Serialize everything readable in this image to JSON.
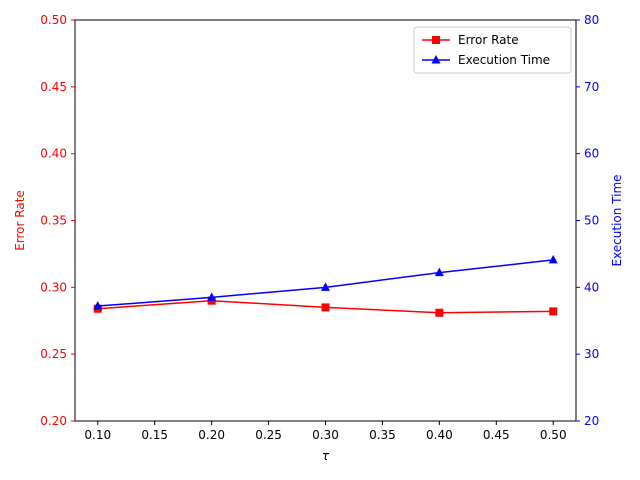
{
  "chart_data": {
    "type": "line",
    "xlabel": "τ",
    "x": [
      0.1,
      0.2,
      0.3,
      0.4,
      0.5
    ],
    "x_ticks": [
      "0.10",
      "0.15",
      "0.20",
      "0.25",
      "0.30",
      "0.35",
      "0.40",
      "0.45",
      "0.50"
    ],
    "x_tick_values": [
      0.1,
      0.15,
      0.2,
      0.25,
      0.3,
      0.35,
      0.4,
      0.45,
      0.5
    ],
    "xlim": [
      0.08,
      0.52
    ],
    "left_axis": {
      "label": "Error Rate",
      "color": "#ff0000",
      "ylim": [
        0.2,
        0.5
      ],
      "ticks": [
        "0.20",
        "0.25",
        "0.30",
        "0.35",
        "0.40",
        "0.45",
        "0.50"
      ],
      "tick_values": [
        0.2,
        0.25,
        0.3,
        0.35,
        0.4,
        0.45,
        0.5
      ]
    },
    "right_axis": {
      "label": "Execution Time",
      "color": "#0000ff",
      "ylim": [
        20,
        80
      ],
      "ticks": [
        "20",
        "30",
        "40",
        "50",
        "60",
        "70",
        "80"
      ],
      "tick_values": [
        20,
        30,
        40,
        50,
        60,
        70,
        80
      ]
    },
    "series": [
      {
        "name": "Error Rate",
        "axis": "left",
        "color": "#ff0000",
        "marker": "square",
        "values": [
          0.284,
          0.29,
          0.285,
          0.281,
          0.282
        ]
      },
      {
        "name": "Execution Time",
        "axis": "right",
        "color": "#0000ff",
        "marker": "triangle",
        "values": [
          37.2,
          38.5,
          40.0,
          42.2,
          44.1
        ]
      }
    ],
    "legend_position": "top-right",
    "grid": false
  }
}
